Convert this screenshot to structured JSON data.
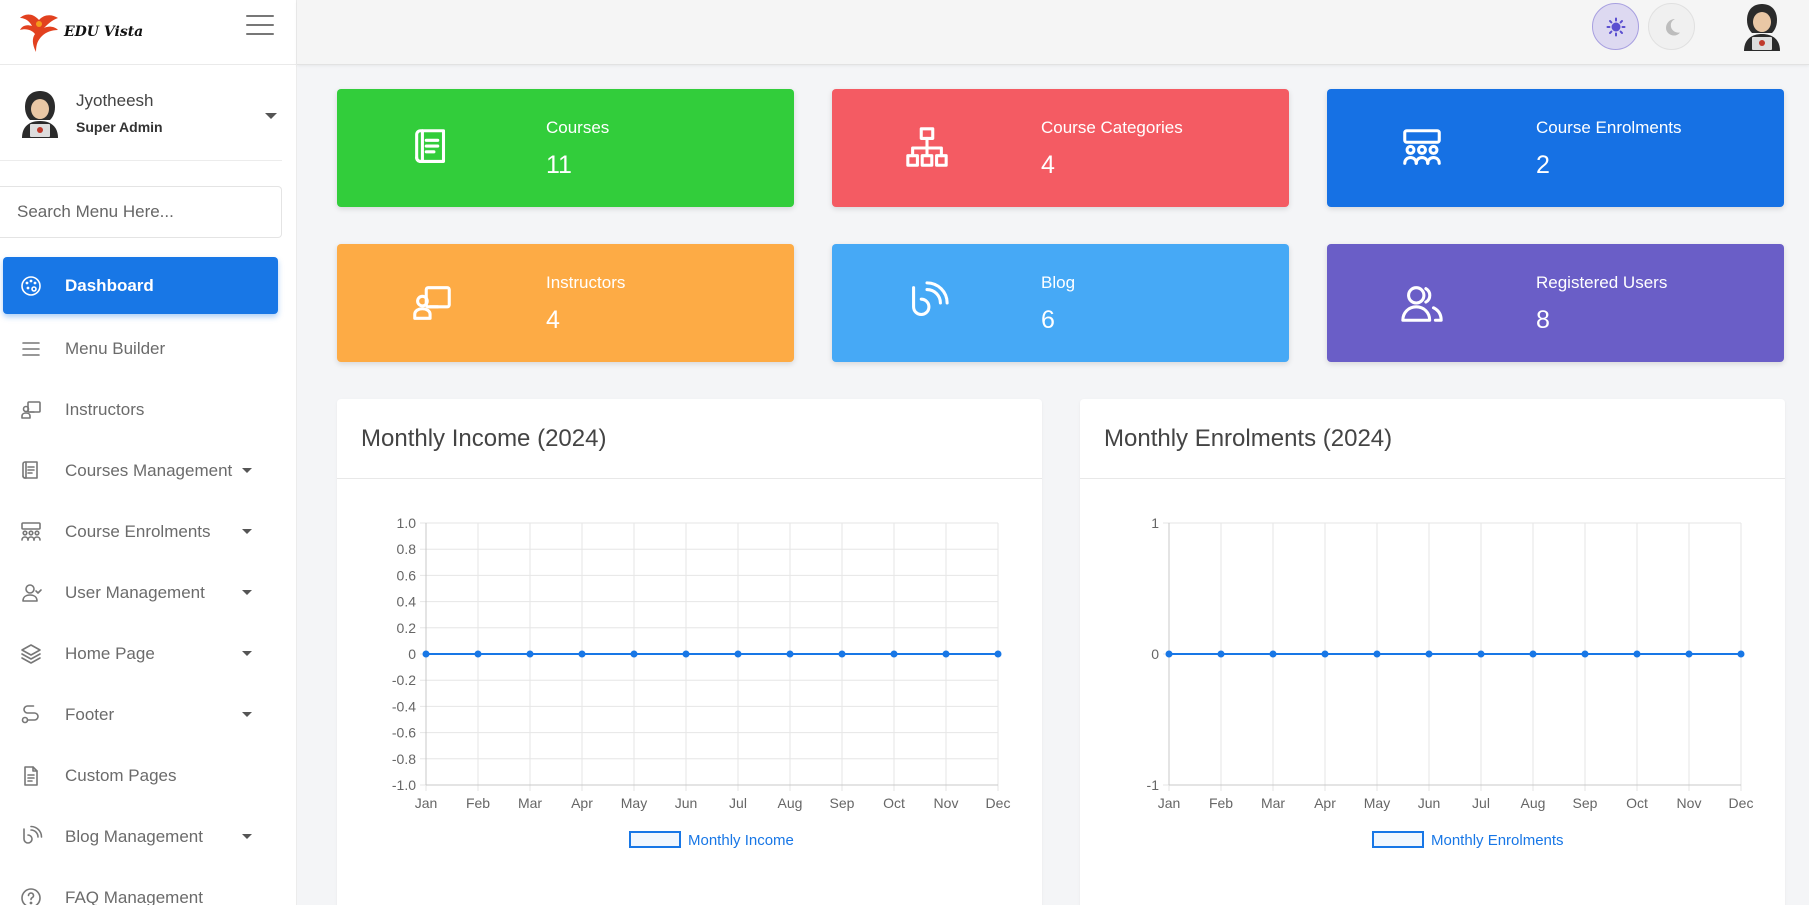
{
  "brand": {
    "name": "EDU Vista"
  },
  "user": {
    "name": "Jyotheesh",
    "role": "Super Admin"
  },
  "search": {
    "placeholder": "Search Menu Here..."
  },
  "menu": [
    {
      "label": "Dashboard",
      "icon": "palette-icon",
      "active": true,
      "caret": false
    },
    {
      "label": "Menu Builder",
      "icon": "menu-lines-icon",
      "caret": false
    },
    {
      "label": "Instructors",
      "icon": "presenter-icon",
      "caret": false
    },
    {
      "label": "Courses Management",
      "icon": "book-icon",
      "caret": true
    },
    {
      "label": "Course Enrolments",
      "icon": "group-icon",
      "caret": true
    },
    {
      "label": "User Management",
      "icon": "user-icon",
      "caret": true
    },
    {
      "label": "Home Page",
      "icon": "layers-icon",
      "caret": true
    },
    {
      "label": "Footer",
      "icon": "route-icon",
      "caret": true
    },
    {
      "label": "Custom Pages",
      "icon": "document-icon",
      "caret": false
    },
    {
      "label": "Blog Management",
      "icon": "blog-icon",
      "caret": true
    },
    {
      "label": "FAQ Management",
      "icon": "question-icon",
      "caret": false
    }
  ],
  "cards": [
    {
      "label": "Courses",
      "value": "11",
      "color": "#32cd3b",
      "icon": "book-icon"
    },
    {
      "label": "Course Categories",
      "value": "4",
      "color": "#f45b63",
      "icon": "hierarchy-icon"
    },
    {
      "label": "Course Enrolments",
      "value": "2",
      "color": "#1671e4",
      "icon": "group-icon"
    },
    {
      "label": "Instructors",
      "value": "4",
      "color": "#fdab45",
      "icon": "presenter-icon"
    },
    {
      "label": "Blog",
      "value": "6",
      "color": "#46a9f6",
      "icon": "blog-icon"
    },
    {
      "label": "Registered Users",
      "value": "8",
      "color": "#6a5ec7",
      "icon": "users-icon"
    }
  ],
  "chart_data": [
    {
      "type": "line",
      "title": "Monthly Income (2024)",
      "categories": [
        "Jan",
        "Feb",
        "Mar",
        "Apr",
        "May",
        "Jun",
        "Jul",
        "Aug",
        "Sep",
        "Oct",
        "Nov",
        "Dec"
      ],
      "series": [
        {
          "name": "Monthly Income",
          "values": [
            0,
            0,
            0,
            0,
            0,
            0,
            0,
            0,
            0,
            0,
            0,
            0
          ],
          "color": "#1877e6"
        }
      ],
      "ylim": [
        -1.0,
        1.0
      ],
      "yticks": [
        "1.0",
        "0.8",
        "0.6",
        "0.4",
        "0.2",
        "0",
        "-0.2",
        "-0.4",
        "-0.6",
        "-0.8",
        "-1.0"
      ],
      "legend": "bottom",
      "grid": true
    },
    {
      "type": "line",
      "title": "Monthly Enrolments (2024)",
      "categories": [
        "Jan",
        "Feb",
        "Mar",
        "Apr",
        "May",
        "Jun",
        "Jul",
        "Aug",
        "Sep",
        "Oct",
        "Nov",
        "Dec"
      ],
      "series": [
        {
          "name": "Monthly Enrolments",
          "values": [
            0,
            0,
            0,
            0,
            0,
            0,
            0,
            0,
            0,
            0,
            0,
            0
          ],
          "color": "#1877e6"
        }
      ],
      "ylim": [
        -1,
        1
      ],
      "yticks": [
        "1",
        "0",
        "-1"
      ],
      "legend": "bottom",
      "grid": true
    }
  ]
}
